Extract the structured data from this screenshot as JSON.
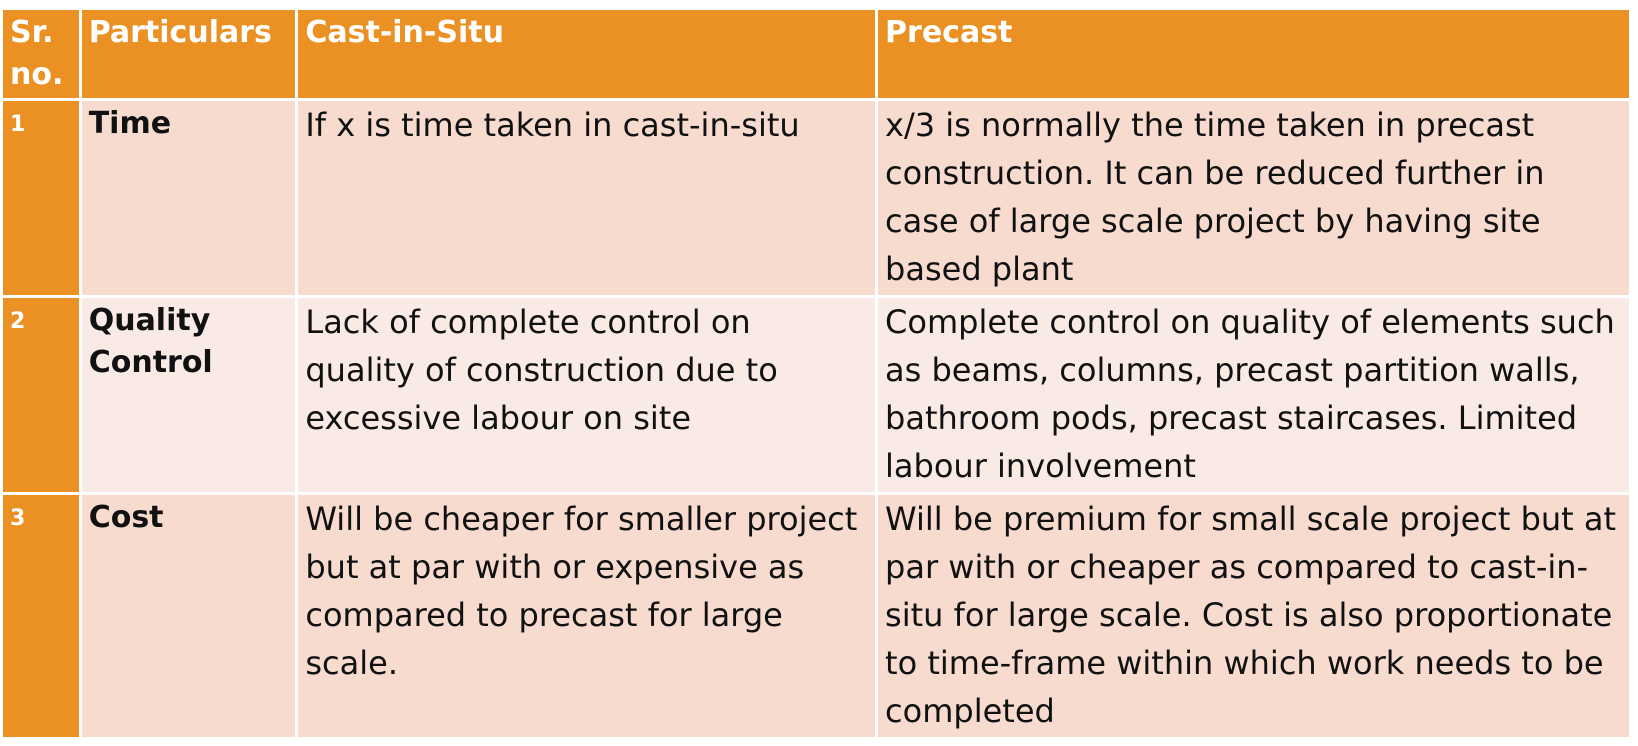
{
  "table": {
    "headers": {
      "sr_no": "Sr. no.",
      "particulars": "Particulars",
      "cast_in_situ": "Cast-in-Situ",
      "precast": "Precast"
    },
    "rows": [
      {
        "sr_no": "1",
        "particular": "Time",
        "cast_in_situ": "If x is time taken in cast-in-situ",
        "precast": "x/3 is normally the time taken in precast construction. It can be reduced further in case of large scale project by having site based plant"
      },
      {
        "sr_no": "2",
        "particular": "Quality Control",
        "cast_in_situ": "Lack of complete control on quality of construction due to excessive labour on site",
        "precast": "Complete control on quality of elements such as beams, columns, precast partition walls, bathroom pods, precast staircases. Limited labour involvement"
      },
      {
        "sr_no": "3",
        "particular": "Cost",
        "cast_in_situ": "Will be cheaper for smaller project but at par with or expensive as compared to precast for large scale.",
        "precast": "Will be premium for small scale project but at par with or cheaper as compared to cast-in-situ for large scale. Cost is also proportionate to time-frame within which work needs to be completed"
      }
    ]
  },
  "colors": {
    "header_bg": "#EB9023",
    "row_dark_bg": "#F6DBCE",
    "row_light_bg": "#FAEAE5",
    "header_text": "#FFFFFF",
    "body_text": "#111111"
  }
}
